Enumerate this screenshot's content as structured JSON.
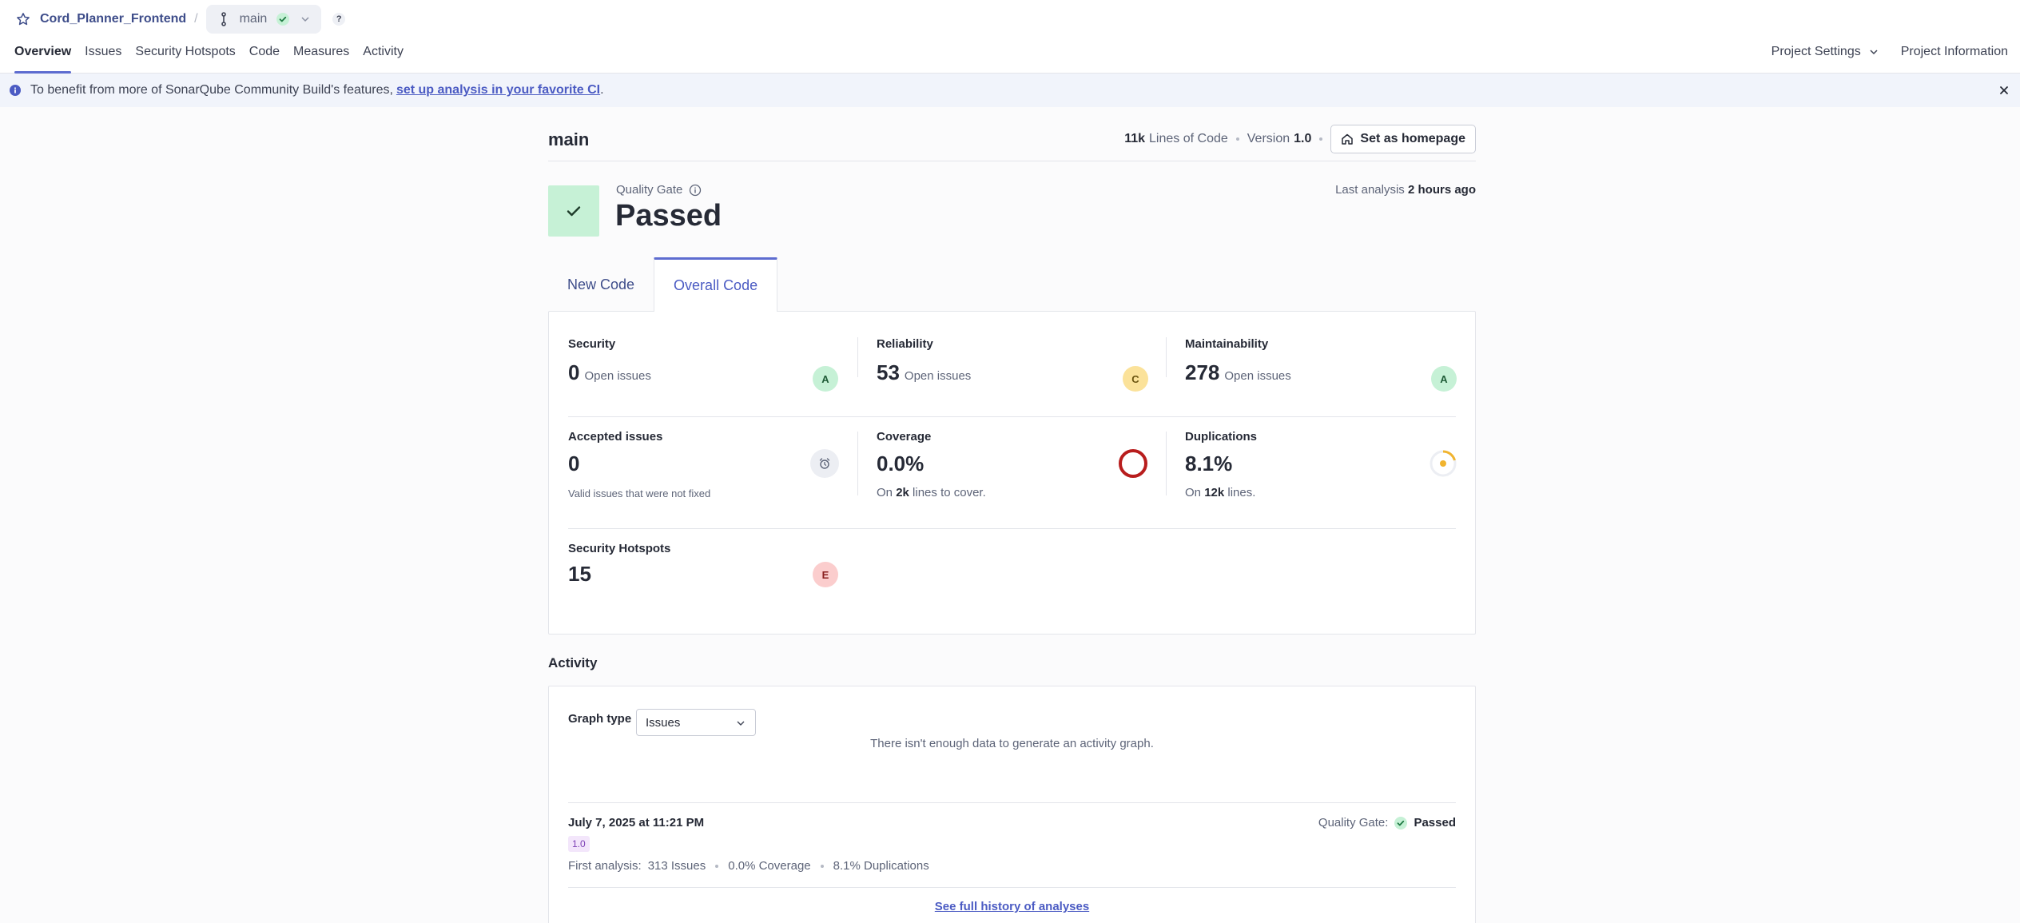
{
  "header": {
    "project_name": "Cord_Planner_Frontend",
    "separator": "/",
    "branch": "main",
    "help": "?"
  },
  "nav": {
    "items": [
      "Overview",
      "Issues",
      "Security Hotspots",
      "Code",
      "Measures",
      "Activity"
    ],
    "right": {
      "project_settings": "Project Settings",
      "project_information": "Project Information"
    }
  },
  "banner": {
    "text": "To benefit from more of SonarQube Community Build's features,",
    "link": "set up analysis in your favorite CI",
    "period": "."
  },
  "branch_header": {
    "title": "main",
    "loc_value": "11k",
    "loc_label": "Lines of Code",
    "version_label": "Version",
    "version_value": "1.0",
    "homepage_button": "Set as homepage"
  },
  "quality_gate": {
    "label": "Quality Gate",
    "status": "Passed",
    "last_analysis_label": "Last analysis",
    "last_analysis_value": "2 hours ago"
  },
  "tabs": [
    "New Code",
    "Overall Code"
  ],
  "measures": {
    "security": {
      "title": "Security",
      "value": "0",
      "unit": "Open issues",
      "rating": "A"
    },
    "reliability": {
      "title": "Reliability",
      "value": "53",
      "unit": "Open issues",
      "rating": "C"
    },
    "maintainability": {
      "title": "Maintainability",
      "value": "278",
      "unit": "Open issues",
      "rating": "A"
    },
    "accepted": {
      "title": "Accepted issues",
      "value": "0",
      "sub": "Valid issues that were not fixed"
    },
    "coverage": {
      "title": "Coverage",
      "value": "0.0%",
      "sub_pre": "On",
      "sub_val": "2k",
      "sub_post": "lines to cover."
    },
    "duplications": {
      "title": "Duplications",
      "value": "8.1%",
      "sub_pre": "On",
      "sub_val": "12k",
      "sub_post": "lines."
    },
    "hotspots": {
      "title": "Security Hotspots",
      "value": "15",
      "rating": "E"
    }
  },
  "activity": {
    "title": "Activity",
    "graph_type_label": "Graph type",
    "graph_type_value": "Issues",
    "no_data": "There isn't enough data to generate an activity graph.",
    "entry": {
      "date": "July 7, 2025 at 11:21 PM",
      "version": "1.0",
      "first_analysis_label": "First analysis:",
      "issues": "313 Issues",
      "coverage": "0.0% Coverage",
      "duplications": "8.1% Duplications",
      "qg_label": "Quality Gate:",
      "qg_status": "Passed"
    },
    "history_link": "See full history of analyses"
  },
  "colors": {
    "accent": "#5d6cd0",
    "passed_bg": "#c6f1d6",
    "rating_a": "#c6f1d6",
    "rating_c": "#fbe29a",
    "rating_e": "#fbcdcd",
    "coverage_ring": "#b81d1d",
    "duplication_ring": "#f1b42f"
  },
  "icons": {
    "project": "star-icon",
    "branch": "branch-icon",
    "banner": "info-icon",
    "close": "close-icon",
    "home": "home-icon",
    "accepted": "alarm-clock-icon"
  }
}
